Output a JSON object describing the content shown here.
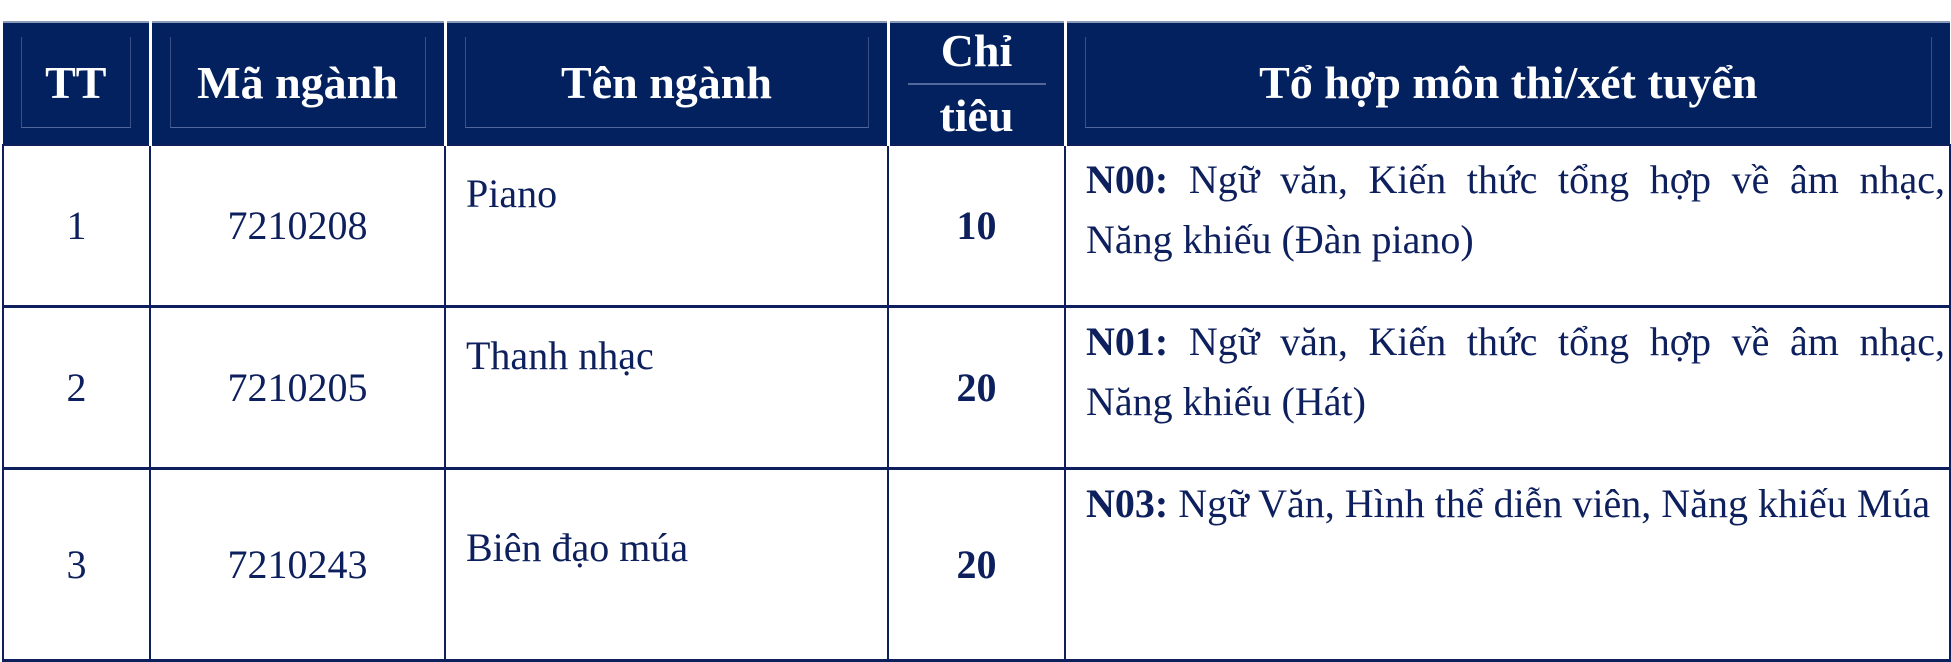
{
  "header": {
    "tt": "TT",
    "code": "Mã ngành",
    "name": "Tên ngành",
    "quota_line1": "Chỉ",
    "quota_line2": "tiêu",
    "combination": "Tổ hợp môn thi/xét tuyển"
  },
  "rows": [
    {
      "tt": "1",
      "code": "7210208",
      "name": "Piano",
      "quota": "10",
      "combo_code": "N00:",
      "combo_text": "Ngữ văn, Kiến thức tổng hợp về âm nhạc, Năng khiếu (Đàn piano)"
    },
    {
      "tt": "2",
      "code": "7210205",
      "name": "Thanh nhạc",
      "quota": "20",
      "combo_code": "N01:",
      "combo_text": "Ngữ văn, Kiến thức tổng hợp về âm nhạc, Năng khiếu (Hát)"
    },
    {
      "tt": "3",
      "code": "7210243",
      "name": "Biên đạo múa",
      "quota": "20",
      "combo_code": "N03:",
      "combo_text": "Ngữ Văn, Hình thể diễn viên, Năng khiếu Múa"
    }
  ],
  "colors": {
    "header_bg": "#03215f",
    "text": "#0d1f5c"
  }
}
